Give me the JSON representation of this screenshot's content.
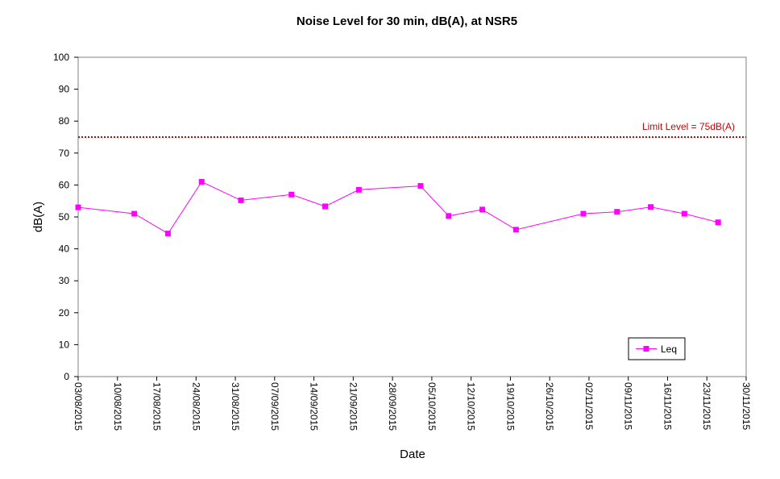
{
  "chart_data": {
    "type": "line",
    "title": "Noise Level for 30 min, dB(A), at NSR5",
    "xlabel": "Date",
    "ylabel": "dB(A)",
    "ylim": [
      0,
      100
    ],
    "yticks": [
      0,
      10,
      20,
      30,
      40,
      50,
      60,
      70,
      80,
      90,
      100
    ],
    "xlim": [
      "2015-08-03",
      "2015-11-30"
    ],
    "xtick_labels": [
      "03/08/2015",
      "10/08/2015",
      "17/08/2015",
      "24/08/2015",
      "31/08/2015",
      "07/09/2015",
      "14/09/2015",
      "21/09/2015",
      "28/09/2015",
      "05/10/2015",
      "12/10/2015",
      "19/10/2015",
      "26/10/2015",
      "02/11/2015",
      "09/11/2015",
      "16/11/2015",
      "23/11/2015",
      "30/11/2015"
    ],
    "grid": false,
    "legend": {
      "placement": "bottom-right"
    },
    "series": [
      {
        "name": "Leq",
        "color": "#ff00ff",
        "marker": "square",
        "x": [
          "2015-08-03",
          "2015-08-13",
          "2015-08-19",
          "2015-08-25",
          "2015-09-01",
          "2015-09-10",
          "2015-09-16",
          "2015-09-22",
          "2015-10-03",
          "2015-10-08",
          "2015-10-14",
          "2015-10-20",
          "2015-11-01",
          "2015-11-07",
          "2015-11-13",
          "2015-11-19",
          "2015-11-25"
        ],
        "y": [
          53,
          51,
          44.8,
          61,
          55.2,
          57,
          53.3,
          58.5,
          59.7,
          50.3,
          52.3,
          46,
          51,
          51.6,
          53.1,
          51,
          48.3
        ]
      }
    ],
    "reference_lines": [
      {
        "label": "Limit Level  = 75dB(A)",
        "y": 75,
        "color": "#cc0000",
        "style": "dotted"
      }
    ]
  }
}
